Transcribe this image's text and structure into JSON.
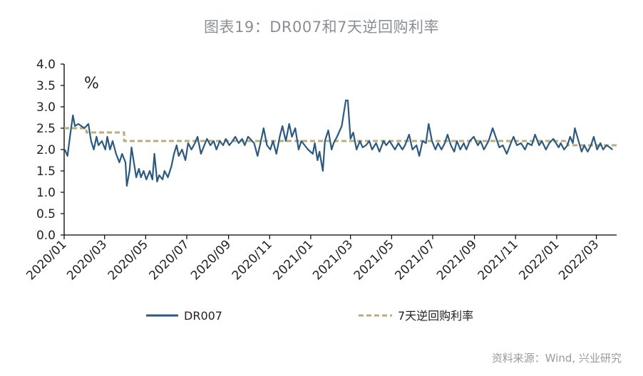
{
  "header": {
    "title": "图表19：DR007和7天逆回购利率"
  },
  "footer": {
    "source": "资料来源：Wind, 兴业研究"
  },
  "colors": {
    "dr007": "#2c5a7f",
    "reverse_repo": "#b8ad7e",
    "axis": "#000000"
  },
  "chart_data": {
    "type": "line",
    "title": "图表19：DR007和7天逆回购利率",
    "unit_label": "%",
    "ylim": [
      0,
      4
    ],
    "yticks": [
      "0.0",
      "0.5",
      "1.0",
      "1.5",
      "2.0",
      "2.5",
      "3.0",
      "3.5",
      "4.0"
    ],
    "xlim": [
      "2020-01",
      "2022-03"
    ],
    "xticks": [
      "2020/01",
      "2020/03",
      "2020/05",
      "2020/07",
      "2020/09",
      "2020/11",
      "2021/01",
      "2021/03",
      "2021/05",
      "2021/07",
      "2021/09",
      "2021/11",
      "2022/01",
      "2022/03"
    ],
    "grid": false,
    "legend_position": "bottom",
    "series": [
      {
        "name": "DR007",
        "style": "solid",
        "points": [
          [
            "2020-01-02",
            2.0
          ],
          [
            "2020-01-06",
            1.85
          ],
          [
            "2020-01-10",
            2.35
          ],
          [
            "2020-01-14",
            2.8
          ],
          [
            "2020-01-17",
            2.55
          ],
          [
            "2020-01-22",
            2.6
          ],
          [
            "2020-01-31",
            2.5
          ],
          [
            "2020-02-06",
            2.6
          ],
          [
            "2020-02-10",
            2.2
          ],
          [
            "2020-02-14",
            2.0
          ],
          [
            "2020-02-18",
            2.3
          ],
          [
            "2020-02-21",
            2.1
          ],
          [
            "2020-02-26",
            2.2
          ],
          [
            "2020-03-02",
            2.0
          ],
          [
            "2020-03-05",
            2.3
          ],
          [
            "2020-03-09",
            2.0
          ],
          [
            "2020-03-13",
            2.2
          ],
          [
            "2020-03-18",
            1.9
          ],
          [
            "2020-03-23",
            1.7
          ],
          [
            "2020-03-27",
            1.9
          ],
          [
            "2020-04-01",
            1.7
          ],
          [
            "2020-04-03",
            1.15
          ],
          [
            "2020-04-07",
            1.5
          ],
          [
            "2020-04-10",
            2.05
          ],
          [
            "2020-04-14",
            1.65
          ],
          [
            "2020-04-17",
            1.35
          ],
          [
            "2020-04-21",
            1.55
          ],
          [
            "2020-04-24",
            1.35
          ],
          [
            "2020-04-28",
            1.5
          ],
          [
            "2020-05-02",
            1.3
          ],
          [
            "2020-05-07",
            1.5
          ],
          [
            "2020-05-11",
            1.3
          ],
          [
            "2020-05-14",
            1.9
          ],
          [
            "2020-05-18",
            1.25
          ],
          [
            "2020-05-21",
            1.4
          ],
          [
            "2020-05-26",
            1.3
          ],
          [
            "2020-05-29",
            1.5
          ],
          [
            "2020-06-03",
            1.35
          ],
          [
            "2020-06-08",
            1.6
          ],
          [
            "2020-06-12",
            1.9
          ],
          [
            "2020-06-16",
            2.1
          ],
          [
            "2020-06-19",
            1.85
          ],
          [
            "2020-06-24",
            2.0
          ],
          [
            "2020-06-29",
            1.75
          ],
          [
            "2020-07-03",
            2.15
          ],
          [
            "2020-07-08",
            2.0
          ],
          [
            "2020-07-13",
            2.15
          ],
          [
            "2020-07-17",
            2.3
          ],
          [
            "2020-07-22",
            1.9
          ],
          [
            "2020-07-27",
            2.1
          ],
          [
            "2020-07-31",
            2.25
          ],
          [
            "2020-08-05",
            2.1
          ],
          [
            "2020-08-10",
            2.2
          ],
          [
            "2020-08-14",
            2.0
          ],
          [
            "2020-08-19",
            2.2
          ],
          [
            "2020-08-24",
            2.1
          ],
          [
            "2020-08-28",
            2.25
          ],
          [
            "2020-09-02",
            2.1
          ],
          [
            "2020-09-07",
            2.2
          ],
          [
            "2020-09-11",
            2.3
          ],
          [
            "2020-09-16",
            2.15
          ],
          [
            "2020-09-21",
            2.25
          ],
          [
            "2020-09-25",
            2.1
          ],
          [
            "2020-09-30",
            2.3
          ],
          [
            "2020-10-09",
            2.15
          ],
          [
            "2020-10-14",
            1.85
          ],
          [
            "2020-10-19",
            2.2
          ],
          [
            "2020-10-23",
            2.5
          ],
          [
            "2020-10-28",
            2.1
          ],
          [
            "2020-11-02",
            2.0
          ],
          [
            "2020-11-06",
            2.2
          ],
          [
            "2020-11-11",
            1.9
          ],
          [
            "2020-11-16",
            2.3
          ],
          [
            "2020-11-20",
            2.55
          ],
          [
            "2020-11-25",
            2.2
          ],
          [
            "2020-11-30",
            2.6
          ],
          [
            "2020-12-04",
            2.3
          ],
          [
            "2020-12-09",
            2.5
          ],
          [
            "2020-12-14",
            2.0
          ],
          [
            "2020-12-18",
            2.2
          ],
          [
            "2020-12-23",
            2.1
          ],
          [
            "2020-12-28",
            2.0
          ],
          [
            "2021-01-04",
            1.9
          ],
          [
            "2021-01-07",
            2.15
          ],
          [
            "2021-01-11",
            1.75
          ],
          [
            "2021-01-14",
            1.95
          ],
          [
            "2021-01-19",
            1.5
          ],
          [
            "2021-01-22",
            2.2
          ],
          [
            "2021-01-27",
            2.45
          ],
          [
            "2021-02-01",
            2.0
          ],
          [
            "2021-02-04",
            2.15
          ],
          [
            "2021-02-09",
            2.3
          ],
          [
            "2021-02-16",
            2.55
          ],
          [
            "2021-02-22",
            3.15
          ],
          [
            "2021-02-25",
            3.15
          ],
          [
            "2021-03-01",
            2.25
          ],
          [
            "2021-03-05",
            2.4
          ],
          [
            "2021-03-10",
            2.0
          ],
          [
            "2021-03-15",
            2.2
          ],
          [
            "2021-03-19",
            2.05
          ],
          [
            "2021-03-24",
            2.1
          ],
          [
            "2021-03-29",
            2.2
          ],
          [
            "2021-04-02",
            2.0
          ],
          [
            "2021-04-08",
            2.15
          ],
          [
            "2021-04-13",
            1.95
          ],
          [
            "2021-04-19",
            2.2
          ],
          [
            "2021-04-23",
            2.1
          ],
          [
            "2021-04-28",
            2.2
          ],
          [
            "2021-05-06",
            2.0
          ],
          [
            "2021-05-11",
            2.15
          ],
          [
            "2021-05-17",
            2.0
          ],
          [
            "2021-05-21",
            2.1
          ],
          [
            "2021-05-27",
            2.35
          ],
          [
            "2021-06-01",
            2.0
          ],
          [
            "2021-06-07",
            2.1
          ],
          [
            "2021-06-11",
            1.85
          ],
          [
            "2021-06-16",
            2.2
          ],
          [
            "2021-06-21",
            2.15
          ],
          [
            "2021-06-25",
            2.6
          ],
          [
            "2021-06-30",
            2.2
          ],
          [
            "2021-07-05",
            2.0
          ],
          [
            "2021-07-09",
            2.15
          ],
          [
            "2021-07-14",
            2.0
          ],
          [
            "2021-07-19",
            2.15
          ],
          [
            "2021-07-23",
            2.35
          ],
          [
            "2021-07-28",
            2.1
          ],
          [
            "2021-08-02",
            1.95
          ],
          [
            "2021-08-06",
            2.2
          ],
          [
            "2021-08-11",
            2.0
          ],
          [
            "2021-08-16",
            2.15
          ],
          [
            "2021-08-20",
            2.0
          ],
          [
            "2021-08-25",
            2.2
          ],
          [
            "2021-08-31",
            2.3
          ],
          [
            "2021-09-06",
            2.1
          ],
          [
            "2021-09-10",
            2.2
          ],
          [
            "2021-09-15",
            2.0
          ],
          [
            "2021-09-22",
            2.2
          ],
          [
            "2021-09-28",
            2.5
          ],
          [
            "2021-10-08",
            2.05
          ],
          [
            "2021-10-13",
            2.1
          ],
          [
            "2021-10-19",
            1.9
          ],
          [
            "2021-10-25",
            2.15
          ],
          [
            "2021-10-29",
            2.3
          ],
          [
            "2021-11-03",
            2.1
          ],
          [
            "2021-11-09",
            2.15
          ],
          [
            "2021-11-15",
            2.0
          ],
          [
            "2021-11-19",
            2.15
          ],
          [
            "2021-11-25",
            2.1
          ],
          [
            "2021-11-30",
            2.35
          ],
          [
            "2021-12-06",
            2.1
          ],
          [
            "2021-12-10",
            2.2
          ],
          [
            "2021-12-16",
            2.0
          ],
          [
            "2021-12-21",
            2.15
          ],
          [
            "2021-12-27",
            2.25
          ],
          [
            "2022-01-04",
            2.05
          ],
          [
            "2022-01-07",
            2.15
          ],
          [
            "2022-01-12",
            2.0
          ],
          [
            "2022-01-17",
            2.1
          ],
          [
            "2022-01-21",
            2.3
          ],
          [
            "2022-01-25",
            2.15
          ],
          [
            "2022-01-28",
            2.5
          ],
          [
            "2022-02-07",
            1.95
          ],
          [
            "2022-02-11",
            2.1
          ],
          [
            "2022-02-16",
            1.95
          ],
          [
            "2022-02-21",
            2.1
          ],
          [
            "2022-02-25",
            2.3
          ],
          [
            "2022-03-02",
            2.0
          ],
          [
            "2022-03-07",
            2.15
          ],
          [
            "2022-03-11",
            2.0
          ],
          [
            "2022-03-16",
            2.1
          ],
          [
            "2022-03-21",
            2.05
          ],
          [
            "2022-03-25",
            2.0
          ]
        ]
      },
      {
        "name": "7天逆回购利率",
        "style": "dashed",
        "points": [
          [
            "2020-01-01",
            2.5
          ],
          [
            "2020-02-03",
            2.5
          ],
          [
            "2020-02-03",
            2.4
          ],
          [
            "2020-03-30",
            2.4
          ],
          [
            "2020-03-30",
            2.2
          ],
          [
            "2022-01-17",
            2.2
          ],
          [
            "2022-01-17",
            2.1
          ],
          [
            "2022-03-31",
            2.1
          ]
        ]
      }
    ]
  }
}
